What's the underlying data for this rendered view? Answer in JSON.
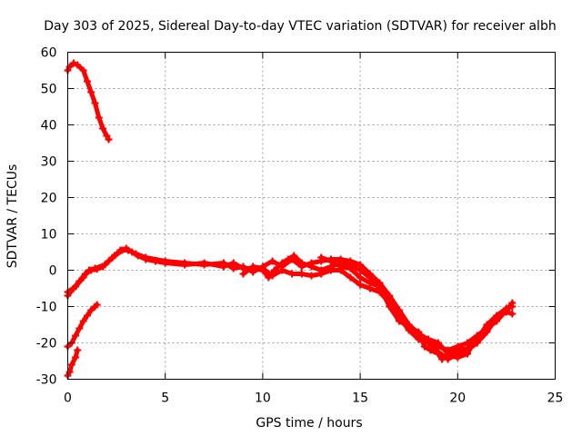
{
  "chart_data": {
    "type": "scatter",
    "title": "Day 303 of 2025, Sidereal Day-to-day VTEC variation (SDTVAR) for receiver albh",
    "xlabel": "GPS time / hours",
    "ylabel": "SDTVAR / TECUs",
    "xlim": [
      0,
      25
    ],
    "ylim": [
      -30,
      60
    ],
    "xticks": [
      0,
      5,
      10,
      15,
      20,
      25
    ],
    "yticks": [
      -30,
      -20,
      -10,
      0,
      10,
      20,
      30,
      40,
      50,
      60
    ],
    "xtick_labels": [
      "0",
      "5",
      "10",
      "15",
      "20",
      "25"
    ],
    "ytick_labels": [
      "-30",
      "-20",
      "-10",
      "0",
      "10",
      "20",
      "30",
      "40",
      "50",
      "60"
    ],
    "grid": true,
    "color": "#ff0000",
    "series": [
      {
        "name": "track-upper",
        "points": [
          [
            0.0,
            55.0
          ],
          [
            0.1,
            56.0
          ],
          [
            0.3,
            57.0
          ],
          [
            0.5,
            56.5
          ],
          [
            0.8,
            55.0
          ],
          [
            1.0,
            52.0
          ],
          [
            1.2,
            49.0
          ],
          [
            1.4,
            46.0
          ],
          [
            1.6,
            42.0
          ],
          [
            1.8,
            39.0
          ],
          [
            2.0,
            37.0
          ],
          [
            2.1,
            36.0
          ]
        ]
      },
      {
        "name": "track-lower-a",
        "points": [
          [
            0.0,
            -21.0
          ],
          [
            0.2,
            -20.0
          ],
          [
            0.4,
            -18.0
          ],
          [
            0.6,
            -16.0
          ],
          [
            0.8,
            -14.0
          ],
          [
            1.0,
            -12.5
          ],
          [
            1.2,
            -11.0
          ],
          [
            1.4,
            -10.0
          ],
          [
            1.5,
            -9.5
          ]
        ]
      },
      {
        "name": "track-lower-b",
        "points": [
          [
            0.0,
            -29.0
          ],
          [
            0.1,
            -28.0
          ],
          [
            0.2,
            -26.0
          ],
          [
            0.4,
            -24.0
          ],
          [
            0.5,
            -22.0
          ]
        ]
      },
      {
        "name": "track-main-1",
        "points": [
          [
            0.0,
            -7.0
          ],
          [
            0.3,
            -5.0
          ],
          [
            0.6,
            -3.0
          ],
          [
            0.9,
            -1.0
          ],
          [
            1.2,
            0.0
          ],
          [
            1.5,
            0.3
          ],
          [
            1.8,
            1.0
          ],
          [
            2.1,
            2.5
          ],
          [
            2.4,
            4.0
          ],
          [
            2.7,
            5.5
          ],
          [
            3.0,
            6.0
          ],
          [
            3.3,
            5.0
          ],
          [
            3.6,
            4.0
          ],
          [
            4.0,
            3.0
          ],
          [
            4.5,
            2.5
          ],
          [
            5.0,
            2.0
          ],
          [
            6.0,
            1.5
          ],
          [
            7.0,
            2.0
          ],
          [
            8.0,
            1.0
          ],
          [
            8.5,
            2.0
          ],
          [
            9.0,
            0.5
          ],
          [
            9.5,
            0.5
          ],
          [
            10.0,
            0.0
          ],
          [
            10.3,
            -2.0
          ],
          [
            10.6,
            0.0
          ],
          [
            11.0,
            2.0
          ],
          [
            11.3,
            3.0
          ],
          [
            11.6,
            4.0
          ],
          [
            12.0,
            2.0
          ],
          [
            12.5,
            1.0
          ],
          [
            13.0,
            0.0
          ],
          [
            13.5,
            1.0
          ],
          [
            14.0,
            2.0
          ],
          [
            14.5,
            1.5
          ],
          [
            15.0,
            0.0
          ],
          [
            15.5,
            -2.0
          ],
          [
            16.0,
            -5.0
          ],
          [
            16.5,
            -8.0
          ],
          [
            17.0,
            -12.0
          ],
          [
            17.5,
            -16.0
          ],
          [
            18.0,
            -18.5
          ],
          [
            18.5,
            -20.0
          ],
          [
            19.0,
            -21.0
          ],
          [
            19.5,
            -22.0
          ],
          [
            20.0,
            -21.0
          ],
          [
            20.5,
            -20.0
          ],
          [
            21.0,
            -18.0
          ],
          [
            21.5,
            -16.0
          ],
          [
            22.0,
            -14.0
          ],
          [
            22.5,
            -11.0
          ],
          [
            22.8,
            -9.0
          ]
        ]
      },
      {
        "name": "track-main-2",
        "points": [
          [
            0.0,
            -6.0
          ],
          [
            0.4,
            -4.5
          ],
          [
            0.8,
            -2.0
          ],
          [
            1.1,
            0.0
          ],
          [
            1.4,
            0.5
          ],
          [
            1.9,
            1.5
          ],
          [
            2.3,
            3.5
          ],
          [
            2.8,
            5.5
          ],
          [
            3.1,
            5.5
          ],
          [
            3.5,
            4.5
          ],
          [
            4.0,
            3.5
          ],
          [
            5.0,
            2.5
          ],
          [
            6.0,
            2.0
          ],
          [
            7.0,
            1.5
          ],
          [
            8.0,
            2.0
          ],
          [
            8.5,
            0.5
          ],
          [
            9.0,
            1.0
          ],
          [
            9.5,
            -0.5
          ],
          [
            10.0,
            1.0
          ],
          [
            10.5,
            2.5
          ],
          [
            11.0,
            1.0
          ],
          [
            11.5,
            3.0
          ],
          [
            12.0,
            1.0
          ],
          [
            12.5,
            2.0
          ],
          [
            13.0,
            2.5
          ],
          [
            13.5,
            3.0
          ],
          [
            14.0,
            3.0
          ],
          [
            14.5,
            2.5
          ],
          [
            15.0,
            1.5
          ],
          [
            15.5,
            -1.0
          ],
          [
            16.0,
            -3.5
          ],
          [
            16.5,
            -7.0
          ],
          [
            17.0,
            -11.0
          ],
          [
            17.5,
            -15.0
          ],
          [
            18.0,
            -17.5
          ],
          [
            18.5,
            -19.0
          ],
          [
            19.0,
            -20.0
          ],
          [
            19.5,
            -23.0
          ],
          [
            20.0,
            -22.0
          ],
          [
            20.5,
            -21.5
          ],
          [
            21.0,
            -19.0
          ],
          [
            21.5,
            -15.0
          ],
          [
            22.0,
            -12.5
          ],
          [
            22.5,
            -10.5
          ],
          [
            22.8,
            -10.0
          ]
        ]
      },
      {
        "name": "track-main-3",
        "points": [
          [
            9.0,
            -1.0
          ],
          [
            9.5,
            1.0
          ],
          [
            10.0,
            0.5
          ],
          [
            10.5,
            -1.5
          ],
          [
            11.0,
            0.0
          ],
          [
            11.5,
            -1.0
          ],
          [
            12.0,
            -1.0
          ],
          [
            12.5,
            -1.5
          ],
          [
            13.0,
            -1.0
          ],
          [
            13.5,
            0.0
          ],
          [
            14.0,
            0.0
          ],
          [
            14.5,
            -2.0
          ],
          [
            15.0,
            -4.0
          ],
          [
            15.5,
            -5.0
          ],
          [
            16.0,
            -6.0
          ],
          [
            16.5,
            -9.0
          ],
          [
            17.0,
            -13.0
          ],
          [
            17.5,
            -16.5
          ],
          [
            18.0,
            -19.0
          ],
          [
            18.5,
            -20.0
          ],
          [
            19.0,
            -22.5
          ],
          [
            19.5,
            -24.5
          ],
          [
            20.0,
            -23.0
          ],
          [
            20.5,
            -22.0
          ],
          [
            21.0,
            -20.0
          ],
          [
            21.5,
            -17.0
          ],
          [
            22.0,
            -13.0
          ],
          [
            22.5,
            -11.5
          ],
          [
            22.8,
            -12.0
          ]
        ]
      },
      {
        "name": "track-main-4",
        "points": [
          [
            13.0,
            3.5
          ],
          [
            13.5,
            2.5
          ],
          [
            14.0,
            1.0
          ],
          [
            14.5,
            0.5
          ],
          [
            15.0,
            -2.0
          ],
          [
            15.5,
            -3.5
          ],
          [
            16.0,
            -4.5
          ],
          [
            16.5,
            -10.0
          ],
          [
            17.0,
            -14.0
          ],
          [
            17.5,
            -15.5
          ],
          [
            18.0,
            -17.0
          ],
          [
            18.3,
            -21.0
          ],
          [
            18.6,
            -22.0
          ],
          [
            19.0,
            -23.0
          ],
          [
            19.2,
            -24.5
          ],
          [
            19.5,
            -23.5
          ],
          [
            20.0,
            -24.0
          ],
          [
            20.5,
            -23.0
          ],
          [
            20.8,
            -20.0
          ],
          [
            21.0,
            -19.5
          ]
        ]
      }
    ]
  }
}
